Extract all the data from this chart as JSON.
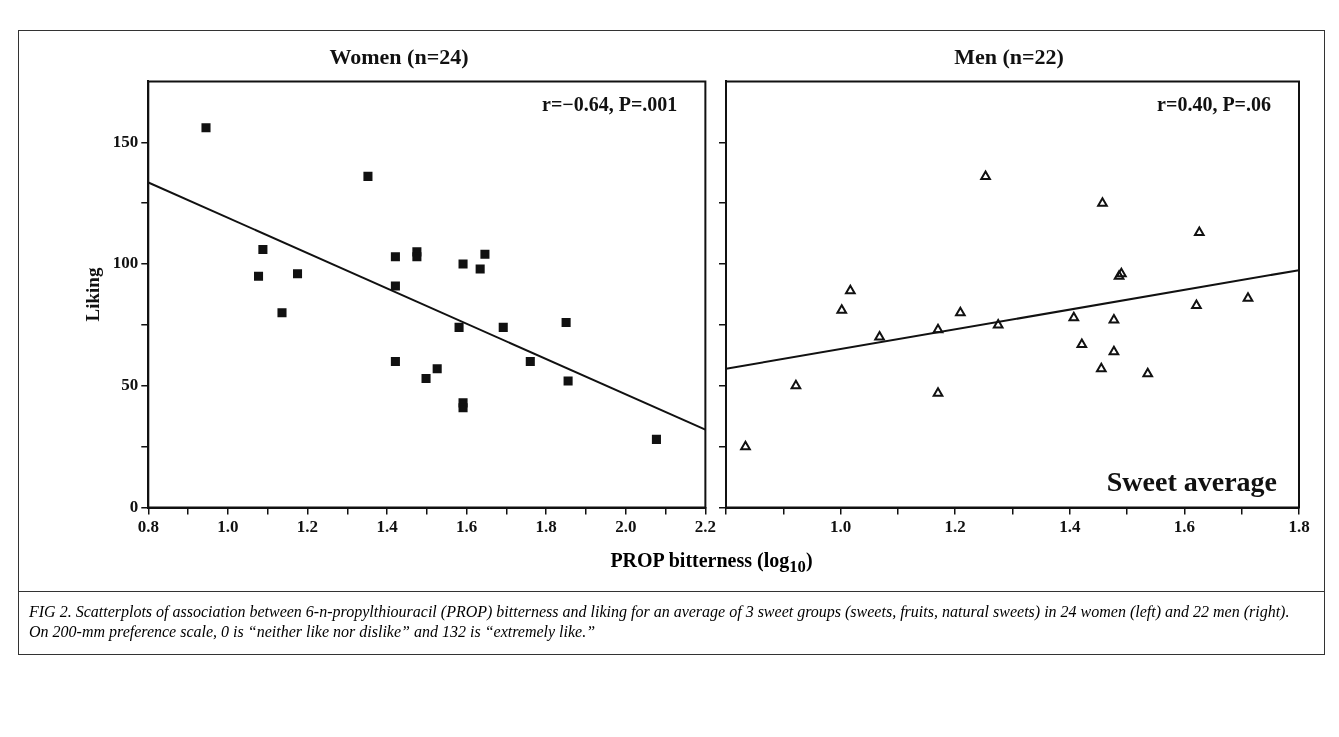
{
  "chart_data": [
    {
      "type": "scatter",
      "title": "Women (n=24)",
      "ylabel": "Liking",
      "xlabel": "PROP bitterness (log$_{10}$)",
      "xlim": [
        0.8,
        2.2
      ],
      "ylim": [
        0,
        175
      ],
      "xticks": [
        0.8,
        {
          "value": 0.9,
          "label": null
        },
        {
          "value": 1,
          "label": "1.0"
        },
        {
          "value": 1.1,
          "label": null
        },
        1.2,
        {
          "value": 1.3,
          "label": null
        },
        1.4,
        {
          "value": 1.5,
          "label": null
        },
        1.6,
        {
          "value": 1.7,
          "label": null
        },
        1.8,
        {
          "value": 1.9,
          "label": null
        },
        {
          "value": 2,
          "label": "2.0"
        },
        {
          "value": 2.1,
          "label": null
        },
        2.2
      ],
      "yticks": [
        0,
        {
          "value": 25,
          "label": null
        },
        50,
        {
          "value": 75,
          "label": null
        },
        100,
        {
          "value": 125,
          "label": null
        },
        150
      ],
      "grid": false,
      "legend": false,
      "series": [
        {
          "marker": "square",
          "color": "#111111",
          "x": [
            0.945,
            1.352,
            1.088,
            1.077,
            1.175,
            1.136,
            1.421,
            1.475,
            1.475,
            1.421,
            1.591,
            1.634,
            1.646,
            1.581,
            1.692,
            1.85,
            1.421,
            1.526,
            1.498,
            1.76,
            1.855,
            1.591,
            1.591,
            2.077
          ],
          "values": [
            156,
            136,
            106,
            95,
            96,
            80,
            103,
            105,
            103,
            91,
            100,
            98,
            104,
            74,
            74,
            76,
            60,
            57,
            53,
            60,
            52,
            43,
            41,
            28
          ]
        },
        {
          "type": "line",
          "marker": "none",
          "line_style": "solid",
          "color": "#111111",
          "x": [
            0.8,
            2.2
          ],
          "values": [
            133.5,
            32
          ]
        }
      ],
      "annotations": [
        "r=−0.64, P=.001",
        "FIG 2. Scatterplots of association between 6-n-propylthiouracil (PROP) bitterness and liking for an average of 3 sweet groups (sweets, fruits, natural sweets) in 24 women (left) and 22 men (right). On 200-mm preference scale, 0 is “neither like nor dislike” and 132 is “extremely like.”"
      ]
    },
    {
      "type": "scatter",
      "title": "Men (n=22)",
      "xlim": [
        0.8,
        1.8
      ],
      "ylim": [
        0,
        175
      ],
      "tick_labels": "x",
      "xticks": [
        {
          "value": 0.8,
          "label": null
        },
        {
          "value": 0.9,
          "label": null
        },
        {
          "value": 1,
          "label": "1.0"
        },
        {
          "value": 1.1,
          "label": null
        },
        1.2,
        {
          "value": 1.3,
          "label": null
        },
        1.4,
        {
          "value": 1.5,
          "label": null
        },
        1.6,
        {
          "value": 1.7,
          "label": null
        },
        1.8
      ],
      "yticks": [
        0,
        {
          "value": 25,
          "label": null
        },
        50,
        {
          "value": 75,
          "label": null
        },
        100,
        {
          "value": 125,
          "label": null
        },
        150
      ],
      "grid": false,
      "legend": false,
      "series": [
        {
          "marker": "triangle",
          "color": "#111111",
          "x": [
            0.834,
            0.922,
            1.017,
            1.002,
            1.068,
            1.17,
            1.17,
            1.209,
            1.275,
            1.253,
            1.407,
            1.421,
            1.477,
            1.477,
            1.455,
            1.457,
            1.486,
            1.49,
            1.536,
            1.626,
            1.621,
            1.711
          ],
          "values": [
            25,
            50,
            89,
            81,
            70,
            73,
            47,
            80,
            75,
            136,
            78,
            67,
            77,
            64,
            57,
            125,
            95,
            96,
            55,
            113,
            83,
            86
          ]
        },
        {
          "type": "line",
          "marker": "none",
          "line_style": "solid",
          "color": "#111111",
          "x": [
            0.8,
            1.8
          ],
          "values": [
            57,
            97.5
          ]
        }
      ],
      "annotations": [
        "r=0.40, P=.06",
        "Sweet average"
      ]
    }
  ]
}
